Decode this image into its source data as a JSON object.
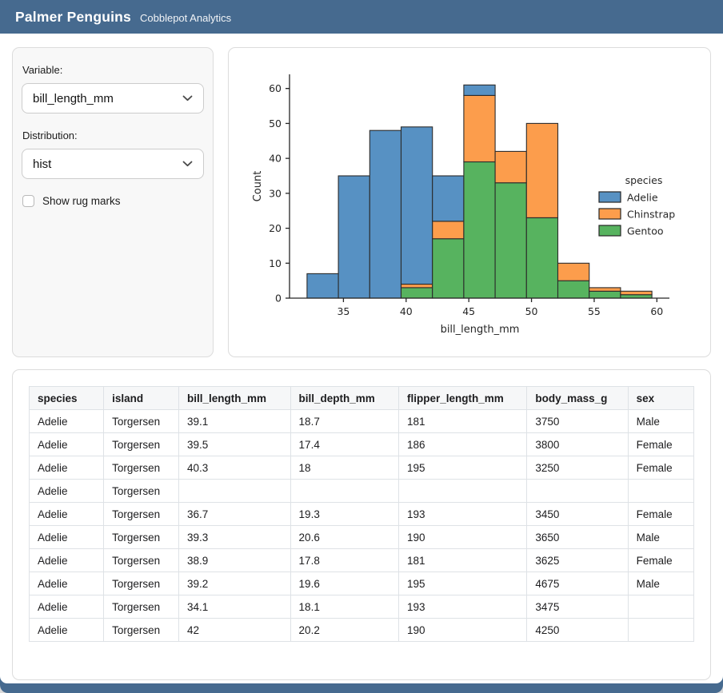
{
  "header": {
    "title": "Palmer Penguins",
    "subtitle": "Cobblepot Analytics"
  },
  "sidebar": {
    "variable": {
      "label": "Variable:",
      "value": "bill_length_mm"
    },
    "distribution": {
      "label": "Distribution:",
      "value": "hist"
    },
    "rug": {
      "label": "Show rug marks",
      "checked": false
    }
  },
  "chart_data": {
    "type": "bar",
    "subtype": "stacked-histogram",
    "title": "",
    "xlabel": "bill_length_mm",
    "ylabel": "Count",
    "legend_title": "species",
    "legend_position": "center-right",
    "grid": false,
    "bin_edges": [
      32.1,
      34.6,
      37.1,
      39.6,
      42.1,
      44.6,
      47.1,
      49.6,
      52.1,
      54.6,
      57.1,
      59.6
    ],
    "series": [
      {
        "name": "Adelie",
        "color": "#5791c3",
        "values": [
          7,
          35,
          48,
          45,
          13,
          3,
          0,
          0,
          0,
          0,
          0
        ]
      },
      {
        "name": "Chinstrap",
        "color": "#fc9d4c",
        "values": [
          0,
          0,
          0,
          1,
          5,
          19,
          9,
          27,
          5,
          1,
          1
        ]
      },
      {
        "name": "Gentoo",
        "color": "#57b35f",
        "values": [
          0,
          0,
          0,
          3,
          17,
          39,
          33,
          23,
          5,
          2,
          1
        ]
      }
    ],
    "stack_order_bottom_to_top": [
      "Gentoo",
      "Chinstrap",
      "Adelie"
    ],
    "bin_totals": [
      7,
      35,
      48,
      49,
      35,
      61,
      42,
      50,
      10,
      3,
      2
    ],
    "xticks": [
      35,
      40,
      45,
      50,
      55,
      60
    ],
    "yticks": [
      0,
      10,
      20,
      30,
      40,
      50,
      60
    ],
    "xlim": [
      30.7,
      61.0
    ],
    "ylim": [
      0,
      64.05
    ],
    "edge_color": "#2b2b2b"
  },
  "table": {
    "columns": [
      "species",
      "island",
      "bill_length_mm",
      "bill_depth_mm",
      "flipper_length_mm",
      "body_mass_g",
      "sex"
    ],
    "rows": [
      [
        "Adelie",
        "Torgersen",
        "39.1",
        "18.7",
        "181",
        "3750",
        "Male"
      ],
      [
        "Adelie",
        "Torgersen",
        "39.5",
        "17.4",
        "186",
        "3800",
        "Female"
      ],
      [
        "Adelie",
        "Torgersen",
        "40.3",
        "18",
        "195",
        "3250",
        "Female"
      ],
      [
        "Adelie",
        "Torgersen",
        "",
        "",
        "",
        "",
        ""
      ],
      [
        "Adelie",
        "Torgersen",
        "36.7",
        "19.3",
        "193",
        "3450",
        "Female"
      ],
      [
        "Adelie",
        "Torgersen",
        "39.3",
        "20.6",
        "190",
        "3650",
        "Male"
      ],
      [
        "Adelie",
        "Torgersen",
        "38.9",
        "17.8",
        "181",
        "3625",
        "Female"
      ],
      [
        "Adelie",
        "Torgersen",
        "39.2",
        "19.6",
        "195",
        "4675",
        "Male"
      ],
      [
        "Adelie",
        "Torgersen",
        "34.1",
        "18.1",
        "193",
        "3475",
        ""
      ],
      [
        "Adelie",
        "Torgersen",
        "42",
        "20.2",
        "190",
        "4250",
        ""
      ]
    ]
  },
  "colors": {
    "header_bg": "#466a8f",
    "page_bg": "#466a8f",
    "content_bg": "#ffffff",
    "sidebar_bg": "#f8f8f8",
    "card_border": "#dcdcdc",
    "table_border": "#dee2e6",
    "table_header_bg": "#f6f7f8",
    "text": "#1b1b1b"
  }
}
